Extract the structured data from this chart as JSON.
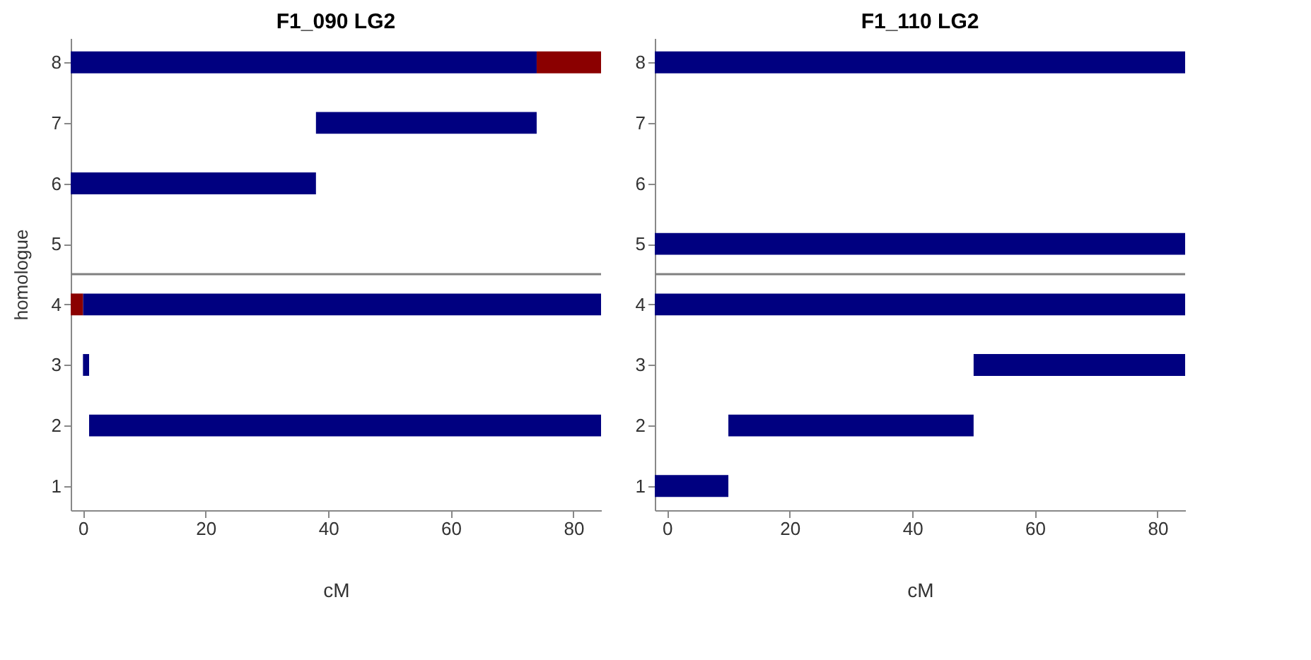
{
  "chart_data": [
    {
      "type": "bar",
      "orientation": "horizontal",
      "title": "F1_090 LG2",
      "xlabel": "cM",
      "ylabel": "homologue",
      "categories": [
        "8",
        "7",
        "6",
        "5",
        "4",
        "3",
        "2",
        "1"
      ],
      "xlim": [
        -2,
        84.5
      ],
      "xticks": [
        0,
        20,
        40,
        60,
        80
      ],
      "series": [
        {
          "color": "#000080",
          "base": [
            -2,
            38,
            -2,
            null,
            0,
            0,
            1,
            null
          ],
          "values": [
            76,
            36,
            40,
            null,
            84.5,
            1,
            83.5,
            null
          ]
        },
        {
          "color": "#8b0000",
          "base": [
            74,
            null,
            null,
            null,
            -2,
            null,
            null,
            null
          ],
          "values": [
            10.5,
            null,
            null,
            null,
            2,
            null,
            null,
            null
          ]
        }
      ]
    },
    {
      "type": "bar",
      "orientation": "horizontal",
      "title": "F1_110 LG2",
      "xlabel": "cM",
      "categories": [
        "8",
        "7",
        "6",
        "5",
        "4",
        "3",
        "2",
        "1"
      ],
      "xlim": [
        -2,
        84.5
      ],
      "xticks": [
        0,
        20,
        40,
        60,
        80
      ],
      "series": [
        {
          "color": "#000080",
          "base": [
            -2,
            null,
            null,
            -2,
            -2,
            50,
            10,
            -2
          ],
          "values": [
            86.5,
            null,
            null,
            86.5,
            86.5,
            34.5,
            40,
            12
          ]
        }
      ]
    }
  ]
}
